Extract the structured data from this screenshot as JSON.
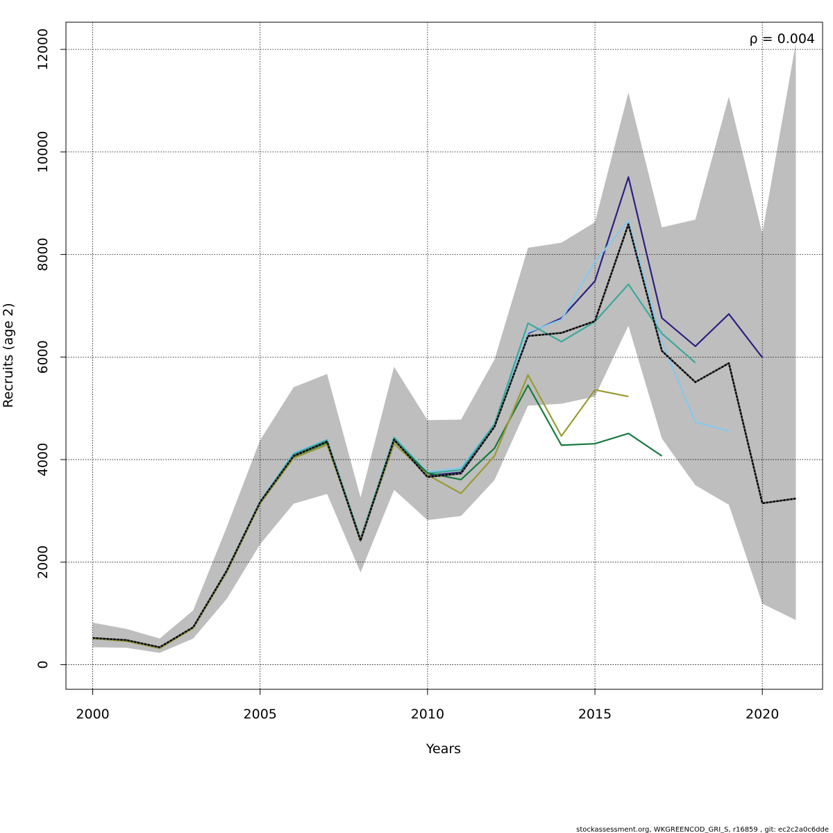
{
  "chart_data": {
    "type": "line",
    "xlabel": "Years",
    "ylabel": "Recruits (age 2)",
    "xlim": [
      1999.2,
      2021.8
    ],
    "ylim": [
      -480,
      12530
    ],
    "x_ticks": [
      2000,
      2005,
      2010,
      2015,
      2020
    ],
    "x_tick_labels": [
      "2000",
      "2005",
      "2010",
      "2015",
      "2020"
    ],
    "y_ticks": [
      0,
      2000,
      4000,
      6000,
      8000,
      10000,
      12000
    ],
    "y_tick_labels": [
      "0",
      "2000",
      "4000",
      "6000",
      "8000",
      "10000",
      "12000"
    ],
    "grid": true,
    "annotation": "ρ = 0.004",
    "confidence_band": {
      "x": [
        2000,
        2001,
        2002,
        2003,
        2004,
        2005,
        2006,
        2007,
        2008,
        2009,
        2010,
        2011,
        2012,
        2013,
        2014,
        2015,
        2016,
        2017,
        2018,
        2019,
        2020,
        2021
      ],
      "lower": [
        340,
        330,
        230,
        510,
        1280,
        2350,
        3140,
        3330,
        1800,
        3410,
        2820,
        2900,
        3600,
        5050,
        5090,
        5230,
        6610,
        4410,
        3500,
        3120,
        1190,
        870
      ],
      "upper": [
        820,
        700,
        510,
        1060,
        2680,
        4380,
        5410,
        5670,
        3260,
        5810,
        4770,
        4780,
        5950,
        8130,
        8230,
        8630,
        11160,
        8530,
        8680,
        11080,
        8410,
        12120
      ],
      "color": "#bebebe"
    },
    "series": [
      {
        "color": "#000000",
        "dashed": true,
        "x": [
          2000,
          2001,
          2002,
          2003,
          2004,
          2005,
          2006,
          2007,
          2008,
          2009,
          2010,
          2011,
          2012,
          2013,
          2014,
          2015,
          2016,
          2017,
          2018,
          2019,
          2020,
          2021
        ],
        "values": [
          520,
          480,
          340,
          730,
          1830,
          3170,
          4070,
          4350,
          2420,
          4390,
          3660,
          3730,
          4640,
          6410,
          6470,
          6700,
          8590,
          6120,
          5510,
          5880,
          3150,
          3240
        ]
      },
      {
        "color": "#2a1f82",
        "x": [
          2000,
          2001,
          2002,
          2003,
          2004,
          2005,
          2006,
          2007,
          2008,
          2009,
          2010,
          2011,
          2012,
          2013,
          2014,
          2015,
          2016,
          2017,
          2018,
          2019,
          2020
        ],
        "values": [
          520,
          480,
          340,
          730,
          1830,
          3170,
          4090,
          4360,
          2440,
          4400,
          3690,
          3750,
          4660,
          6460,
          6760,
          7480,
          9510,
          6760,
          6210,
          6840,
          5990
        ]
      },
      {
        "color": "#86c8ed",
        "x": [
          2000,
          2001,
          2002,
          2003,
          2004,
          2005,
          2006,
          2007,
          2008,
          2009,
          2010,
          2011,
          2012,
          2013,
          2014,
          2015,
          2016,
          2017,
          2018,
          2019
        ],
        "values": [
          520,
          480,
          340,
          730,
          1840,
          3190,
          4130,
          4390,
          2470,
          4440,
          3760,
          3840,
          4700,
          6480,
          6730,
          7860,
          8660,
          6300,
          4730,
          4560
        ]
      },
      {
        "color": "#3aa99a",
        "x": [
          2000,
          2001,
          2002,
          2003,
          2004,
          2005,
          2006,
          2007,
          2008,
          2009,
          2010,
          2011,
          2012,
          2013,
          2014,
          2015,
          2016,
          2017,
          2018
        ],
        "values": [
          520,
          480,
          340,
          730,
          1840,
          3180,
          4110,
          4380,
          2460,
          4430,
          3730,
          3800,
          4690,
          6660,
          6300,
          6690,
          7420,
          6460,
          5890
        ]
      },
      {
        "color": "#15793a",
        "x": [
          2000,
          2001,
          2002,
          2003,
          2004,
          2005,
          2006,
          2007,
          2008,
          2009,
          2010,
          2011,
          2012,
          2013,
          2014,
          2015,
          2016,
          2017
        ],
        "values": [
          520,
          480,
          340,
          730,
          1830,
          3170,
          4060,
          4330,
          2450,
          4370,
          3740,
          3610,
          4220,
          5450,
          4280,
          4310,
          4510,
          4070
        ]
      },
      {
        "color": "#999933",
        "x": [
          2000,
          2001,
          2002,
          2003,
          2004,
          2005,
          2006,
          2007,
          2008,
          2009,
          2010,
          2011,
          2012,
          2013,
          2014,
          2015,
          2016
        ],
        "values": [
          510,
          460,
          320,
          710,
          1800,
          3140,
          4030,
          4290,
          2450,
          4310,
          3700,
          3340,
          4070,
          5650,
          4460,
          5360,
          5230
        ]
      }
    ]
  },
  "footer": "stockassessment.org, WKGREENCOD_GRI_S, r16859 , git: ec2c2a0c6dde"
}
